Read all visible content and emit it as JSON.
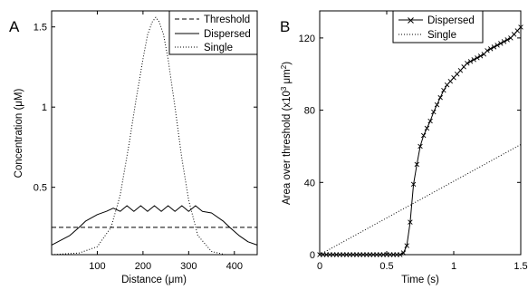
{
  "chart_data": [
    {
      "panel_label": "A",
      "type": "line",
      "xlabel": "Distance (μm)",
      "ylabel": "Concentration (μM)",
      "xlim": [
        0,
        450
      ],
      "ylim": [
        0.08,
        1.6
      ],
      "xticks": [
        100,
        200,
        300,
        400
      ],
      "xtick_labels": [
        "100",
        "200",
        "300",
        "400"
      ],
      "yticks": [
        0.5,
        1,
        1.5
      ],
      "ytick_labels": [
        "0.5",
        "1",
        "1.5"
      ],
      "legend_position": "top-right",
      "grid": false,
      "series": [
        {
          "name": "Threshold",
          "style": "dashed",
          "x": [
            0,
            450
          ],
          "y": [
            0.25,
            0.25
          ]
        },
        {
          "name": "Dispersed",
          "style": "solid",
          "description_points": "flat-topped profile with small ripples between ~75 and ~375 μm",
          "x": [
            0,
            40,
            60,
            75,
            100,
            120,
            135,
            150,
            165,
            180,
            195,
            210,
            225,
            240,
            255,
            270,
            285,
            300,
            315,
            330,
            350,
            375,
            390,
            410,
            430,
            450
          ],
          "y": [
            0.14,
            0.2,
            0.25,
            0.29,
            0.33,
            0.35,
            0.37,
            0.35,
            0.385,
            0.35,
            0.385,
            0.35,
            0.385,
            0.35,
            0.385,
            0.35,
            0.385,
            0.35,
            0.385,
            0.35,
            0.34,
            0.29,
            0.25,
            0.2,
            0.16,
            0.14
          ]
        },
        {
          "name": "Single",
          "style": "dotted",
          "x": [
            0,
            60,
            100,
            130,
            150,
            170,
            185,
            200,
            210,
            220,
            228,
            236,
            245,
            255,
            270,
            285,
            300,
            320,
            350,
            380,
            420,
            450
          ],
          "y": [
            0.08,
            0.09,
            0.13,
            0.25,
            0.45,
            0.78,
            1.05,
            1.3,
            1.45,
            1.53,
            1.56,
            1.53,
            1.45,
            1.3,
            1.0,
            0.68,
            0.42,
            0.2,
            0.1,
            0.08,
            0.08,
            0.08
          ]
        }
      ]
    },
    {
      "panel_label": "B",
      "type": "line",
      "xlabel": "Time (s)",
      "ylabel": "Area over threshold (x10³ μm²)",
      "xlim": [
        0,
        1.5
      ],
      "ylim": [
        0,
        135
      ],
      "xticks": [
        0,
        0.5,
        1,
        1.5
      ],
      "xtick_labels": [
        "0",
        "0.5",
        "1",
        "1.5"
      ],
      "yticks": [
        0,
        40,
        80,
        120
      ],
      "ytick_labels": [
        "0",
        "40",
        "80",
        "120"
      ],
      "legend_position": "top-left",
      "grid": false,
      "series": [
        {
          "name": "Dispersed",
          "style": "solid-x-markers",
          "x": [
            0,
            0.025,
            0.05,
            0.075,
            0.1,
            0.125,
            0.15,
            0.175,
            0.2,
            0.225,
            0.25,
            0.275,
            0.3,
            0.325,
            0.35,
            0.375,
            0.4,
            0.425,
            0.45,
            0.475,
            0.5,
            0.525,
            0.55,
            0.575,
            0.6,
            0.625,
            0.65,
            0.675,
            0.7,
            0.725,
            0.75,
            0.775,
            0.8,
            0.825,
            0.85,
            0.875,
            0.9,
            0.925,
            0.95,
            0.975,
            1.0,
            1.025,
            1.05,
            1.075,
            1.1,
            1.125,
            1.15,
            1.175,
            1.2,
            1.225,
            1.25,
            1.275,
            1.3,
            1.325,
            1.35,
            1.375,
            1.4,
            1.425,
            1.45,
            1.475,
            1.5
          ],
          "y": [
            0,
            0,
            0,
            0,
            0,
            0,
            0,
            0,
            0,
            0,
            0,
            0,
            0,
            0,
            0,
            0,
            0,
            0,
            0,
            0,
            0,
            0,
            0,
            0,
            0,
            1,
            5,
            18,
            39,
            50,
            60,
            66,
            70,
            74,
            79,
            83,
            87,
            91,
            94,
            96,
            98,
            100,
            102,
            104,
            106,
            107,
            108,
            109,
            110,
            111,
            113,
            114,
            115,
            116,
            117,
            118,
            119,
            120,
            122,
            124,
            126
          ]
        },
        {
          "name": "Single",
          "style": "dotted",
          "x": [
            0,
            1.5
          ],
          "y": [
            0,
            61
          ]
        }
      ]
    }
  ]
}
